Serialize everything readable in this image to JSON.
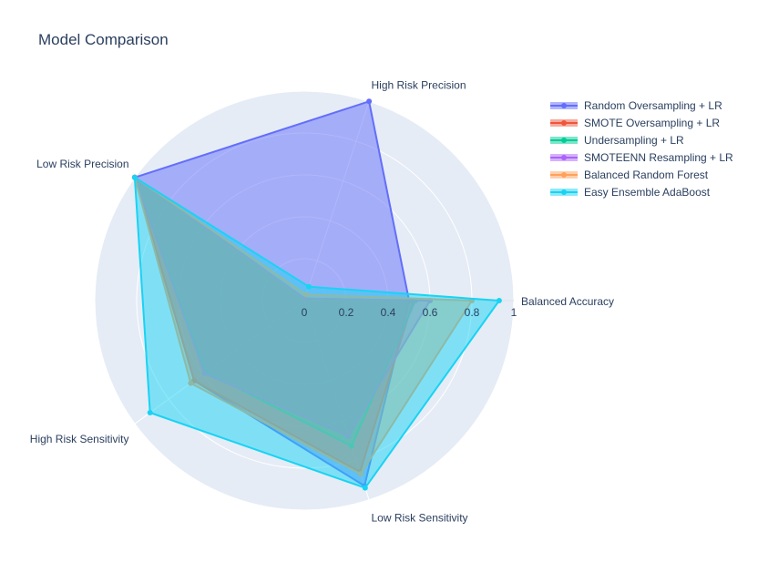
{
  "chart_data": {
    "type": "radar",
    "title": "Model Comparison",
    "axes": [
      "Balanced Accuracy",
      "High Risk Precision",
      "Low Risk Precision",
      "High Risk Sensitivity",
      "Low Risk Sensitivity"
    ],
    "radial_ticks": [
      "0",
      "0.2",
      "0.4",
      "0.6",
      "0.8",
      "1"
    ],
    "radial_range": [
      0,
      1
    ],
    "grid": true,
    "legend_position": "top-right",
    "series": [
      {
        "name": "Random Oversampling + LR",
        "color": "#636efa",
        "values": [
          0.5,
          1.0,
          1.0,
          0.65,
          0.93
        ]
      },
      {
        "name": "SMOTE Oversampling + LR",
        "color": "#ef553b",
        "values": [
          0.52,
          0.01,
          1.0,
          0.65,
          0.86
        ]
      },
      {
        "name": "Undersampling + LR",
        "color": "#00cc96",
        "values": [
          0.53,
          0.01,
          1.0,
          0.58,
          0.73
        ]
      },
      {
        "name": "SMOTEENN Resampling + LR",
        "color": "#ab63fa",
        "values": [
          0.6,
          0.01,
          1.0,
          0.59,
          0.68
        ]
      },
      {
        "name": "Balanced Random Forest",
        "color": "#ffa15a",
        "values": [
          0.8,
          0.03,
          1.0,
          0.67,
          0.87
        ]
      },
      {
        "name": "Easy Ensemble AdaBoost",
        "color": "#19d3f3",
        "values": [
          0.93,
          0.07,
          1.0,
          0.91,
          0.94
        ]
      }
    ]
  }
}
